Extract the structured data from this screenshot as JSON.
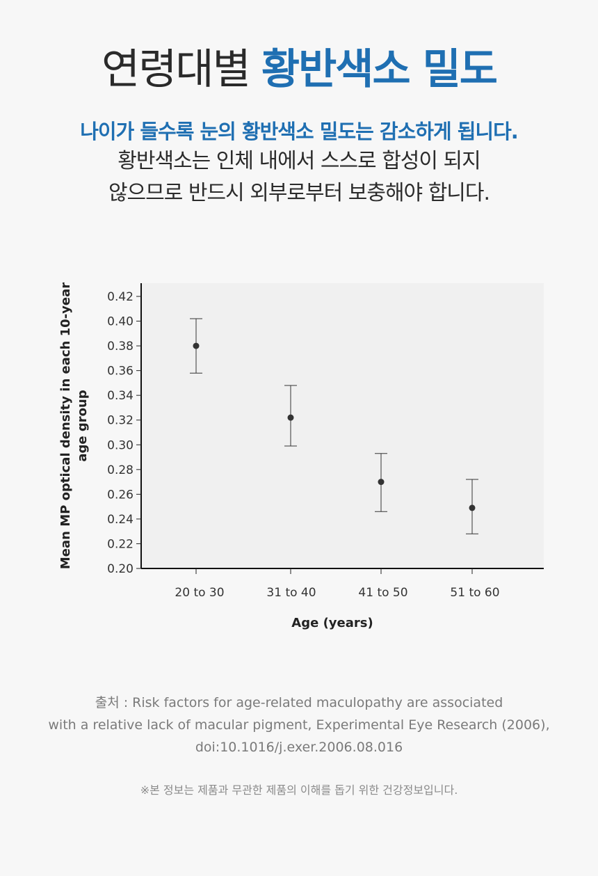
{
  "heading": {
    "light": "연령대별",
    "bold": "황반색소 밀도"
  },
  "subheading": "나이가 들수록 눈의 황반색소 밀도는 감소하게 됩니다.",
  "description": [
    "황반색소는 인체 내에서 스스로 합성이 되지",
    "않으므로 반드시 외부로부터 보충해야 합니다."
  ],
  "source_lines": [
    "출처 : Risk factors for age-related maculopathy are associated",
    "with a relative lack of macular pigment, Experimental Eye Research (2006),",
    "doi:10.1016/j.exer.2006.08.016"
  ],
  "disclaimer": "※본 정보는 제품과 무관한 제품의 이해를 돕기 위한 건강정보입니다.",
  "colors": {
    "accent": "#1f6fb2",
    "text": "#222222",
    "plot_background": "#f0f0f0",
    "marker": "#333333"
  },
  "chart_data": {
    "type": "scatter",
    "xlabel": "Age (years)",
    "ylabel_lines": [
      "Mean MP optical density in each 10-year",
      "age group"
    ],
    "categories": [
      "20 to 30",
      "31 to 40",
      "41 to 50",
      "51 to 60"
    ],
    "values": [
      0.38,
      0.322,
      0.27,
      0.249
    ],
    "error_low": [
      0.358,
      0.299,
      0.246,
      0.228
    ],
    "error_high": [
      0.402,
      0.348,
      0.293,
      0.272
    ],
    "ylim": [
      0.2,
      0.42
    ],
    "yticks": [
      "0.42",
      "0.40",
      "0.38",
      "0.36",
      "0.34",
      "0.32",
      "0.30",
      "0.28",
      "0.26",
      "0.24",
      "0.22",
      "0.20"
    ],
    "grid": false,
    "error_bars": true
  }
}
